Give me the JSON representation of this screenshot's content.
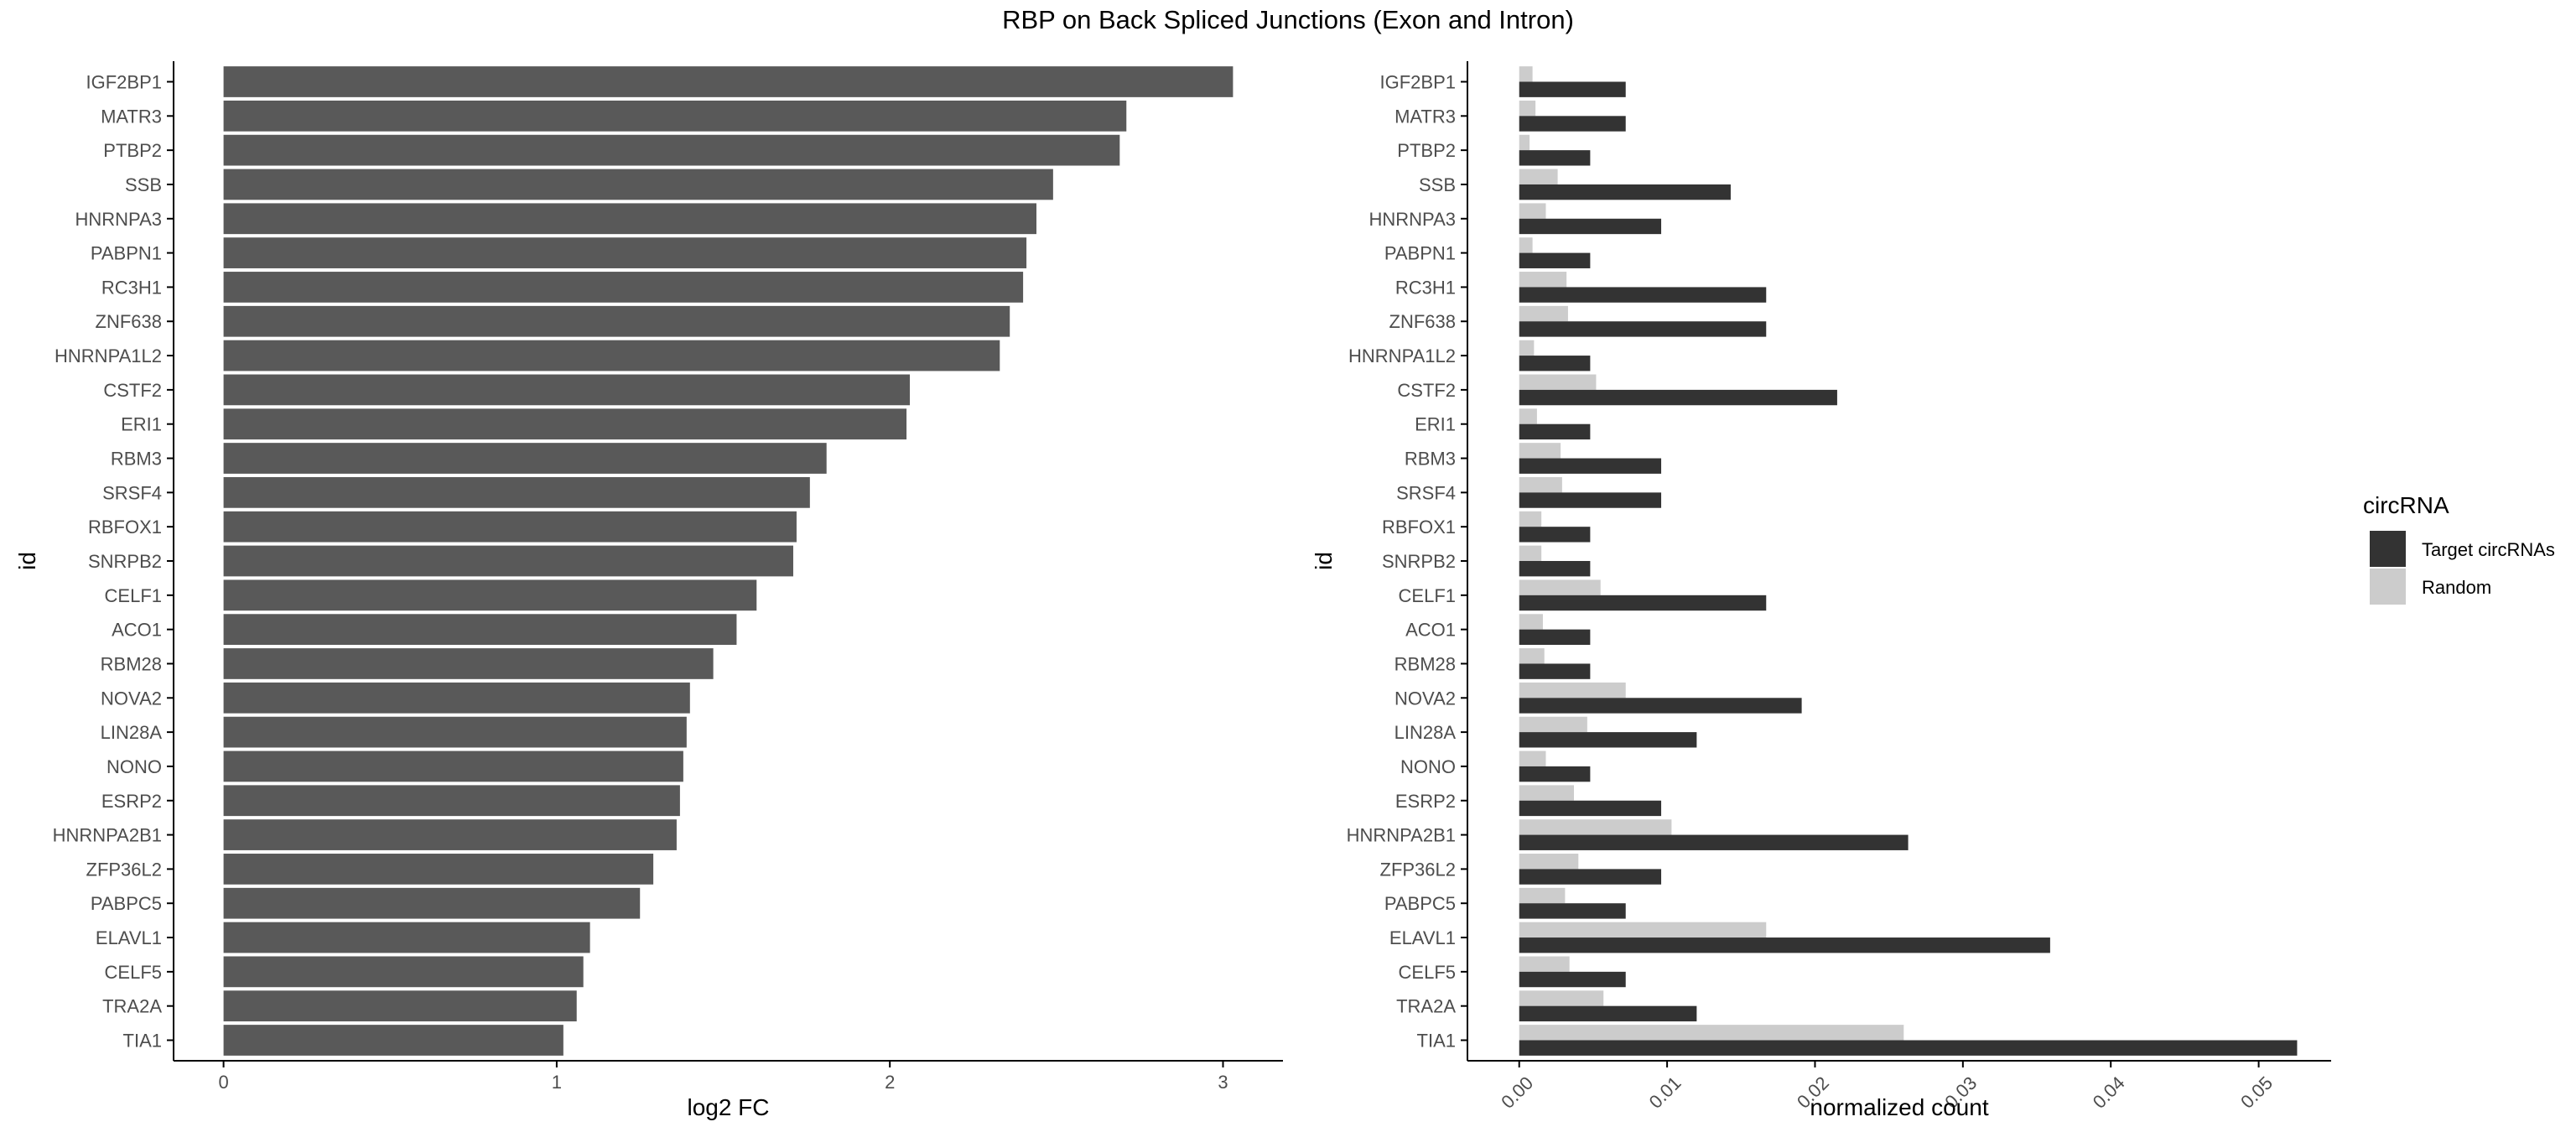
{
  "title": "RBP on Back Spliced Junctions (Exon and Intron)",
  "colors": {
    "bar_left": "#595959",
    "target": "#333333",
    "random": "#cccccc",
    "axis": "#000000"
  },
  "chart_data": [
    {
      "type": "bar",
      "orientation": "horizontal",
      "xlabel": "log2 FC",
      "ylabel": "id",
      "xlim": [
        -0.15,
        3.18
      ],
      "xticks": [
        0,
        1,
        2,
        3
      ],
      "xtick_labels": [
        "0",
        "1",
        "2",
        "3"
      ],
      "categories": [
        "IGF2BP1",
        "MATR3",
        "PTBP2",
        "SSB",
        "HNRNPA3",
        "PABPN1",
        "RC3H1",
        "ZNF638",
        "HNRNPA1L2",
        "CSTF2",
        "ERI1",
        "RBM3",
        "SRSF4",
        "RBFOX1",
        "SNRPB2",
        "CELF1",
        "ACO1",
        "RBM28",
        "NOVA2",
        "LIN28A",
        "NONO",
        "ESRP2",
        "HNRNPA2B1",
        "ZFP36L2",
        "PABPC5",
        "ELAVL1",
        "CELF5",
        "TRA2A",
        "TIA1"
      ],
      "values": [
        3.03,
        2.71,
        2.69,
        2.49,
        2.44,
        2.41,
        2.4,
        2.36,
        2.33,
        2.06,
        2.05,
        1.81,
        1.76,
        1.72,
        1.71,
        1.6,
        1.54,
        1.47,
        1.4,
        1.39,
        1.38,
        1.37,
        1.36,
        1.29,
        1.25,
        1.1,
        1.08,
        1.06,
        1.02
      ],
      "grid": false
    },
    {
      "type": "bar",
      "orientation": "horizontal",
      "grouped": true,
      "xlabel": "normalized count",
      "ylabel": "id",
      "xlim": [
        -0.0035,
        0.0549
      ],
      "xticks": [
        0,
        0.01,
        0.02,
        0.03,
        0.04,
        0.05
      ],
      "xtick_labels": [
        "0.00",
        "0.01",
        "0.02",
        "0.03",
        "0.04",
        "0.05"
      ],
      "categories": [
        "IGF2BP1",
        "MATR3",
        "PTBP2",
        "SSB",
        "HNRNPA3",
        "PABPN1",
        "RC3H1",
        "ZNF638",
        "HNRNPA1L2",
        "CSTF2",
        "ERI1",
        "RBM3",
        "SRSF4",
        "RBFOX1",
        "SNRPB2",
        "CELF1",
        "ACO1",
        "RBM28",
        "NOVA2",
        "LIN28A",
        "NONO",
        "ESRP2",
        "HNRNPA2B1",
        "ZFP36L2",
        "PABPC5",
        "ELAVL1",
        "CELF5",
        "TRA2A",
        "TIA1"
      ],
      "series": [
        {
          "name": "Target circRNAs",
          "values": [
            0.0072,
            0.0072,
            0.0048,
            0.0143,
            0.0096,
            0.0048,
            0.0167,
            0.0167,
            0.0048,
            0.0215,
            0.0048,
            0.0096,
            0.0096,
            0.0048,
            0.0048,
            0.0167,
            0.0048,
            0.0048,
            0.0191,
            0.012,
            0.0048,
            0.0096,
            0.0263,
            0.0096,
            0.0072,
            0.0359,
            0.0072,
            0.012,
            0.0526
          ]
        },
        {
          "name": "Random",
          "values": [
            0.0009,
            0.0011,
            0.0007,
            0.0026,
            0.0018,
            0.0009,
            0.0032,
            0.0033,
            0.001,
            0.0052,
            0.0012,
            0.0028,
            0.0029,
            0.0015,
            0.0015,
            0.0055,
            0.0016,
            0.0017,
            0.0072,
            0.0046,
            0.0018,
            0.0037,
            0.0103,
            0.004,
            0.0031,
            0.0167,
            0.0034,
            0.0057,
            0.026
          ]
        }
      ],
      "legend": {
        "title": "circRNA",
        "position": "right"
      },
      "grid": false
    }
  ]
}
